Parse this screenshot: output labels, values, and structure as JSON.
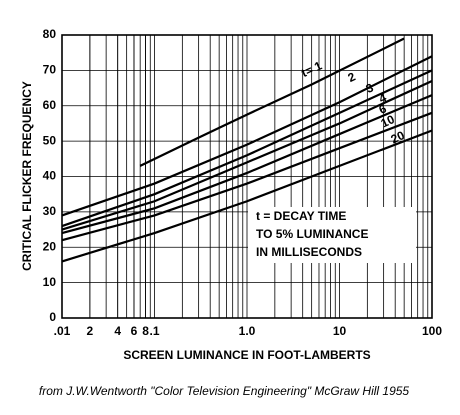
{
  "chart_data": {
    "type": "line",
    "x_label": "SCREEN LUMINANCE IN FOOT-LAMBERTS",
    "y_label": "CRITICAL FLICKER FREQUENCY",
    "log_x": true,
    "xlim": [
      0.01,
      100
    ],
    "ylim": [
      0,
      80
    ],
    "xticks": [
      {
        "value": 0.01,
        "label": ".01"
      },
      {
        "value": 0.02,
        "label": "2"
      },
      {
        "value": 0.04,
        "label": "4"
      },
      {
        "value": 0.06,
        "label": "6"
      },
      {
        "value": 0.08,
        "label": "8"
      },
      {
        "value": 0.1,
        "label": ".1"
      },
      {
        "value": 1,
        "label": "1.0"
      },
      10,
      100
    ],
    "yticks": [
      0,
      10,
      20,
      30,
      40,
      50,
      60,
      70,
      80
    ],
    "grid": true,
    "annotations": [
      "t = DECAY TIME",
      "TO 5% LUMINANCE",
      "IN MILLISECONDS"
    ],
    "caption": "from J.W.Wentworth \"Color Television Engineering\" McGraw Hill 1955",
    "series": [
      {
        "name": "t= 1",
        "color": "#000000",
        "x": [
          0.07,
          0.3,
          1,
          5,
          50
        ],
        "values": [
          43,
          51,
          57.5,
          66,
          79
        ]
      },
      {
        "name": "2",
        "color": "#000000",
        "x": [
          0.01,
          0.1,
          1,
          10,
          100
        ],
        "values": [
          29,
          38,
          49,
          61,
          74
        ]
      },
      {
        "name": "3",
        "color": "#000000",
        "x": [
          0.01,
          0.1,
          1,
          10,
          100
        ],
        "values": [
          26,
          35,
          46,
          58,
          70
        ]
      },
      {
        "name": "4",
        "color": "#000000",
        "x": [
          0.01,
          0.1,
          1,
          10,
          100
        ],
        "values": [
          25,
          33,
          44,
          55,
          67
        ]
      },
      {
        "name": "6",
        "color": "#000000",
        "x": [
          0.01,
          0.1,
          1,
          10,
          100
        ],
        "values": [
          24,
          31,
          41,
          52,
          63
        ]
      },
      {
        "name": "10",
        "color": "#000000",
        "x": [
          0.01,
          0.1,
          1,
          10,
          100
        ],
        "values": [
          22,
          29,
          38,
          48,
          58
        ]
      },
      {
        "name": "20",
        "color": "#000000",
        "x": [
          0.01,
          0.1,
          1,
          10,
          100
        ],
        "values": [
          16,
          24,
          33,
          43,
          53
        ]
      }
    ]
  }
}
